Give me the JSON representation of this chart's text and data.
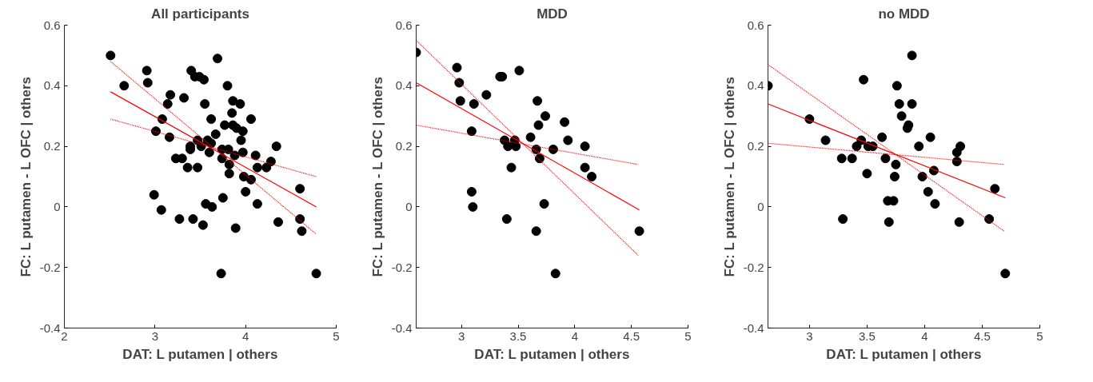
{
  "chart_data": [
    {
      "type": "scatter",
      "title": "All participants",
      "xlabel": "DAT: L putamen | others",
      "ylabel": "FC: L putamen - L OFC | others",
      "xlim": [
        2,
        5
      ],
      "xticks": [
        2,
        3,
        4,
        5
      ],
      "ylim": [
        -0.4,
        0.6
      ],
      "yticks": [
        -0.4,
        -0.2,
        0,
        0.2,
        0.4,
        0.6
      ],
      "series": [
        {
          "marker": "circle",
          "color": "#000000",
          "x": [
            2.51,
            2.66,
            2.91,
            2.92,
            3.17,
            3.14,
            3.32,
            3.08,
            3.01,
            3.16,
            3.4,
            3.44,
            3.49,
            3.54,
            3.69,
            3.8,
            3.55,
            3.86,
            3.94,
            3.85,
            4.06,
            3.62,
            3.77,
            3.86,
            3.9,
            3.97,
            3.67,
            3.95,
            3.39,
            3.47,
            3.58,
            3.51,
            3.62,
            3.39,
            3.6,
            3.74,
            3.81,
            3.74,
            3.88,
            3.97,
            4.11,
            4.34,
            3.23,
            3.3,
            3.36,
            3.47,
            3.82,
            3.82,
            3.98,
            4.06,
            4.13,
            4.23,
            4.28,
            4.6,
            2.99,
            3.07,
            4.0,
            4.13,
            3.56,
            3.63,
            3.75,
            3.27,
            3.42,
            3.53,
            3.89,
            4.36,
            4.6,
            4.62,
            3.73,
            4.78
          ],
          "values": [
            0.5,
            0.4,
            0.45,
            0.41,
            0.37,
            0.34,
            0.36,
            0.29,
            0.25,
            0.23,
            0.45,
            0.43,
            0.43,
            0.42,
            0.49,
            0.4,
            0.34,
            0.35,
            0.34,
            0.31,
            0.29,
            0.29,
            0.27,
            0.27,
            0.26,
            0.25,
            0.24,
            0.22,
            0.2,
            0.22,
            0.22,
            0.2,
            0.21,
            0.19,
            0.18,
            0.19,
            0.19,
            0.16,
            0.17,
            0.18,
            0.17,
            0.2,
            0.16,
            0.16,
            0.13,
            0.13,
            0.14,
            0.11,
            0.1,
            0.09,
            0.13,
            0.13,
            0.15,
            0.06,
            0.04,
            -0.01,
            0.05,
            0.01,
            0.01,
            0.0,
            0.03,
            -0.04,
            -0.04,
            -0.06,
            -0.07,
            -0.05,
            -0.04,
            -0.08,
            -0.22,
            -0.22
          ]
        },
        {
          "type": "line",
          "color": "#ff0000",
          "x": [
            2.51,
            4.78
          ],
          "values": [
            0.38,
            0.0
          ]
        },
        {
          "type": "line",
          "color": "#ff0000",
          "line_style": "dotted",
          "x": [
            2.51,
            4.78
          ],
          "values": [
            0.48,
            -0.09
          ]
        },
        {
          "type": "line",
          "color": "#ff0000",
          "line_style": "dotted",
          "x": [
            2.51,
            4.78
          ],
          "values": [
            0.29,
            0.1
          ]
        }
      ]
    },
    {
      "type": "scatter",
      "title": "MDD",
      "xlabel": "DAT: L putamen | others",
      "ylabel": "FC: L putamen - L OFC | others",
      "xlim": [
        2.6,
        5
      ],
      "xticks": [
        3,
        3.5,
        4,
        4.5,
        5
      ],
      "ylim": [
        -0.4,
        0.6
      ],
      "yticks": [
        -0.4,
        -0.2,
        0,
        0.2,
        0.4,
        0.6
      ],
      "series": [
        {
          "marker": "circle",
          "color": "#000000",
          "x": [
            2.6,
            2.96,
            2.98,
            2.99,
            3.11,
            3.22,
            3.34,
            3.36,
            3.51,
            3.09,
            3.67,
            3.74,
            3.91,
            3.68,
            3.61,
            3.94,
            3.38,
            3.41,
            3.47,
            3.48,
            3.66,
            3.69,
            3.81,
            4.09,
            4.09,
            4.15,
            3.44,
            3.09,
            3.1,
            3.73,
            3.4,
            3.66,
            3.83,
            4.57
          ],
          "values": [
            0.51,
            0.46,
            0.41,
            0.35,
            0.34,
            0.37,
            0.43,
            0.43,
            0.45,
            0.25,
            0.35,
            0.3,
            0.28,
            0.27,
            0.23,
            0.22,
            0.22,
            0.2,
            0.22,
            0.2,
            0.19,
            0.16,
            0.19,
            0.2,
            0.13,
            0.1,
            0.13,
            0.05,
            0.0,
            0.01,
            -0.04,
            -0.08,
            -0.22,
            -0.08
          ]
        },
        {
          "type": "line",
          "color": "#ff0000",
          "x": [
            2.6,
            4.57
          ],
          "values": [
            0.41,
            -0.01
          ]
        },
        {
          "type": "line",
          "color": "#ff0000",
          "line_style": "dotted",
          "x": [
            2.6,
            4.56
          ],
          "values": [
            0.55,
            -0.16
          ]
        },
        {
          "type": "line",
          "color": "#ff0000",
          "line_style": "dotted",
          "x": [
            2.6,
            4.56
          ],
          "values": [
            0.27,
            0.14
          ]
        }
      ]
    },
    {
      "type": "scatter",
      "title": "no MDD",
      "xlabel": "DAT: L putamen | others",
      "ylabel": "FC: L putamen - L OFC | others",
      "xlim": [
        2.64,
        5
      ],
      "xticks": [
        3,
        3.5,
        4,
        4.5,
        5
      ],
      "ylim": [
        -0.4,
        0.6
      ],
      "yticks": [
        -0.4,
        -0.2,
        0,
        0.2,
        0.4,
        0.6
      ],
      "series": [
        {
          "marker": "circle",
          "color": "#000000",
          "x": [
            2.64,
            3.0,
            3.14,
            3.28,
            3.37,
            3.29,
            3.47,
            3.45,
            3.41,
            3.51,
            3.55,
            3.5,
            3.63,
            3.66,
            3.75,
            3.74,
            3.68,
            3.73,
            3.69,
            3.76,
            3.78,
            3.89,
            3.8,
            3.86,
            3.85,
            3.89,
            3.95,
            4.05,
            3.98,
            4.08,
            4.03,
            4.09,
            4.31,
            4.28,
            4.28,
            4.3,
            4.61,
            4.56,
            4.7
          ],
          "values": [
            0.4,
            0.29,
            0.22,
            0.16,
            0.16,
            -0.04,
            0.42,
            0.22,
            0.2,
            0.2,
            0.2,
            0.11,
            0.23,
            0.16,
            0.14,
            0.1,
            0.02,
            0.02,
            -0.05,
            0.4,
            0.34,
            0.34,
            0.3,
            0.27,
            0.26,
            0.5,
            0.2,
            0.23,
            0.1,
            0.12,
            0.05,
            0.01,
            0.2,
            0.18,
            0.15,
            -0.05,
            0.06,
            -0.04,
            -0.22
          ]
        },
        {
          "type": "line",
          "color": "#ff0000",
          "x": [
            2.64,
            4.7
          ],
          "values": [
            0.34,
            0.03
          ]
        },
        {
          "type": "line",
          "color": "#ff0000",
          "line_style": "dotted",
          "x": [
            2.64,
            4.69
          ],
          "values": [
            0.47,
            -0.08
          ]
        },
        {
          "type": "line",
          "color": "#ff0000",
          "line_style": "dotted",
          "x": [
            2.64,
            4.69
          ],
          "values": [
            0.21,
            0.14
          ]
        }
      ]
    }
  ]
}
